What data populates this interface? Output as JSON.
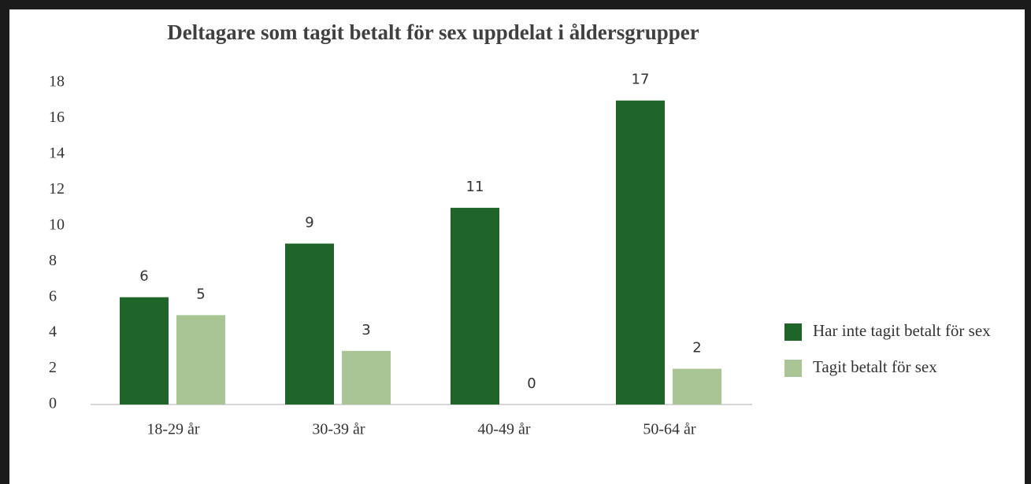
{
  "chart_data": {
    "type": "bar",
    "title": "Deltagare som tagit betalt för sex uppdelat i åldersgrupper",
    "categories": [
      "18-29 år",
      "30-39 år",
      "40-49 år",
      "50-64 år"
    ],
    "series": [
      {
        "name": "Har inte tagit betalt för sex",
        "color": "#1f6428",
        "values": [
          6,
          9,
          11,
          17
        ]
      },
      {
        "name": "Tagit betalt för sex",
        "color": "#a9c596",
        "values": [
          5,
          3,
          0,
          2
        ]
      }
    ],
    "ylim": [
      0,
      18
    ],
    "yticks": [
      0,
      2,
      4,
      6,
      8,
      10,
      12,
      14,
      16,
      18
    ],
    "legend": "right",
    "grid": false
  }
}
